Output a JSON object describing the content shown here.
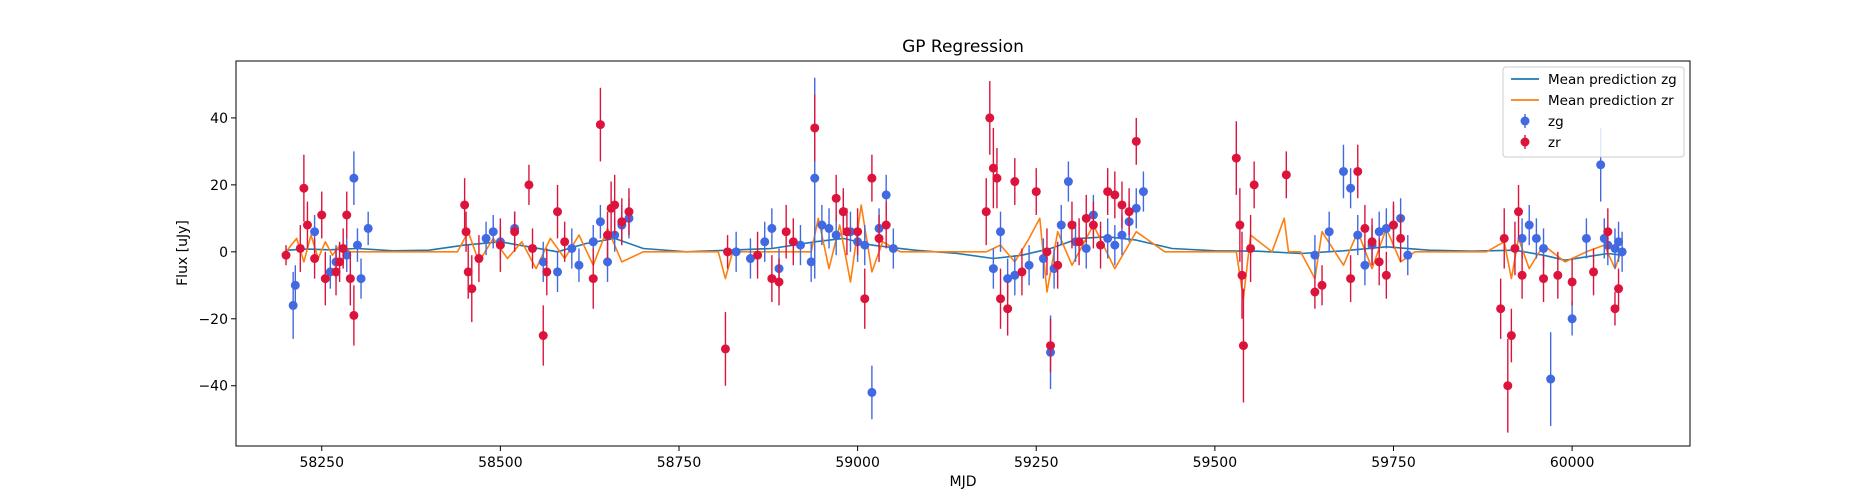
{
  "chart_data": {
    "type": "scatter",
    "title": "GP Regression",
    "xlabel": "MJD",
    "ylabel": "Flux [uJy]",
    "xlim": [
      58130,
      60165
    ],
    "ylim": [
      -58,
      57
    ],
    "xticks": [
      58250,
      58500,
      58750,
      59000,
      59250,
      59500,
      59750,
      60000
    ],
    "yticks": [
      -40,
      -20,
      0,
      20,
      40
    ],
    "grid": false,
    "legend_position": "top-right",
    "colors": {
      "zg": "#4169e1",
      "zr": "#dc143c",
      "mean_zg": "#1f77b4",
      "mean_zr": "#ff7f0e"
    },
    "series": [
      {
        "name": "Mean prediction zg",
        "kind": "line",
        "x": [
          58200,
          58230,
          58260,
          58300,
          58350,
          58400,
          58450,
          58500,
          58540,
          58580,
          58620,
          58660,
          58700,
          58760,
          58820,
          58880,
          58940,
          58980,
          59020,
          59080,
          59140,
          59190,
          59230,
          59270,
          59310,
          59350,
          59390,
          59440,
          59500,
          59560,
          59620,
          59680,
          59740,
          59800,
          59860,
          59920,
          59960,
          59990,
          60020,
          60050,
          60070
        ],
        "y": [
          0.5,
          0.8,
          0.6,
          1.0,
          0.3,
          0.5,
          2.0,
          3.0,
          1.5,
          0.0,
          2.5,
          4.0,
          1.0,
          0.0,
          0.5,
          1.0,
          3.0,
          4.0,
          2.0,
          0.5,
          -0.5,
          -2.0,
          -1.0,
          1.0,
          4.0,
          4.5,
          3.5,
          1.0,
          0.3,
          0.2,
          -0.5,
          0.3,
          1.5,
          0.5,
          0.2,
          0.5,
          -1.0,
          -2.5,
          -1.5,
          -0.5,
          -1.0
        ]
      },
      {
        "name": "Mean prediction zr",
        "kind": "line",
        "x": [
          58200,
          58215,
          58225,
          58235,
          58245,
          58255,
          58265,
          58275,
          58290,
          58310,
          58350,
          58400,
          58440,
          58455,
          58470,
          58490,
          58510,
          58530,
          58550,
          58570,
          58590,
          58610,
          58630,
          58650,
          58670,
          58700,
          58780,
          58805,
          58815,
          58825,
          58860,
          58900,
          58935,
          58945,
          58960,
          58975,
          58990,
          59005,
          59020,
          59035,
          59060,
          59120,
          59180,
          59200,
          59220,
          59240,
          59255,
          59265,
          59280,
          59300,
          59330,
          59360,
          59390,
          59430,
          59500,
          59530,
          59540,
          59550,
          59580,
          59597,
          59603,
          59620,
          59640,
          59650,
          59680,
          59700,
          59720,
          59740,
          59760,
          59780,
          59820,
          59880,
          59905,
          59915,
          59925,
          59940,
          59960,
          59990,
          60020,
          60045,
          60060,
          60070
        ],
        "y": [
          0.0,
          4.0,
          -3.0,
          5.0,
          -2.0,
          3.0,
          -1.0,
          2.0,
          0.0,
          0.0,
          0.0,
          0.0,
          0.0,
          6.0,
          -3.0,
          4.0,
          -2.0,
          3.0,
          -5.0,
          4.0,
          -2.0,
          5.0,
          -4.0,
          7.0,
          -3.0,
          0.0,
          0.0,
          0.0,
          -8.0,
          0.0,
          0.0,
          0.0,
          0.0,
          10.0,
          -5.0,
          8.0,
          -9.0,
          14.0,
          -6.0,
          3.0,
          0.0,
          0.0,
          0.0,
          2.0,
          -3.0,
          4.0,
          10.0,
          -12.0,
          6.0,
          -4.0,
          8.0,
          -5.0,
          6.0,
          0.0,
          0.0,
          0.0,
          -14.0,
          5.0,
          0.0,
          10.0,
          0.0,
          0.0,
          -8.0,
          6.0,
          -4.0,
          6.0,
          -5.0,
          7.0,
          -3.0,
          0.0,
          0.0,
          0.0,
          3.0,
          -8.0,
          4.0,
          -5.0,
          2.0,
          -3.0,
          0.0,
          2.0,
          -5.0,
          1.0
        ]
      },
      {
        "name": "zg",
        "kind": "errorbar",
        "x": [
          58210,
          58213,
          58240,
          58262,
          58270,
          58285,
          58295,
          58300,
          58305,
          58315,
          58480,
          58490,
          58500,
          58520,
          58560,
          58580,
          58600,
          58610,
          58630,
          58640,
          58650,
          58660,
          58670,
          58680,
          58830,
          58850,
          58870,
          58880,
          58890,
          58920,
          58935,
          58940,
          58950,
          58960,
          58970,
          58980,
          58990,
          59000,
          59010,
          59020,
          59030,
          59040,
          59050,
          59190,
          59200,
          59210,
          59220,
          59240,
          59260,
          59270,
          59275,
          59285,
          59295,
          59305,
          59320,
          59330,
          59350,
          59360,
          59370,
          59380,
          59390,
          59400,
          59640,
          59660,
          59680,
          59690,
          59700,
          59710,
          59720,
          59730,
          59740,
          59750,
          59760,
          59770,
          59930,
          59940,
          59950,
          59960,
          59970,
          60000,
          60020,
          60040,
          60045,
          60050,
          60060,
          60065,
          60070
        ],
        "y": [
          -16,
          -10,
          6,
          -6,
          -3,
          -1,
          22,
          2,
          -8,
          7,
          4,
          6,
          3,
          7,
          -3,
          -6,
          1,
          -4,
          3,
          9,
          -3,
          5,
          8,
          10,
          0,
          -2,
          3,
          7,
          -5,
          2,
          -3,
          22,
          8,
          7,
          5,
          12,
          6,
          3,
          2,
          -42,
          7,
          17,
          1,
          -5,
          6,
          -8,
          -7,
          -4,
          -2,
          -30,
          -5,
          8,
          21,
          3,
          1,
          11,
          4,
          2,
          5,
          9,
          13,
          18,
          -1,
          6,
          24,
          19,
          5,
          -4,
          2,
          6,
          7,
          8,
          10,
          -1,
          4,
          8,
          4,
          1,
          -38,
          -20,
          4,
          26,
          4,
          2,
          1,
          3,
          0
        ],
        "err": [
          10,
          6,
          5,
          5,
          5,
          5,
          8,
          5,
          6,
          5,
          5,
          5,
          5,
          5,
          6,
          6,
          6,
          5,
          5,
          5,
          6,
          5,
          6,
          6,
          6,
          6,
          6,
          6,
          6,
          6,
          6,
          30,
          6,
          6,
          6,
          6,
          6,
          6,
          6,
          8,
          6,
          6,
          6,
          6,
          6,
          6,
          6,
          6,
          6,
          11,
          6,
          6,
          6,
          6,
          6,
          6,
          6,
          6,
          6,
          6,
          6,
          6,
          6,
          6,
          8,
          6,
          6,
          6,
          6,
          6,
          6,
          6,
          6,
          6,
          6,
          6,
          6,
          6,
          14,
          5,
          6,
          11,
          6,
          6,
          6,
          6,
          6
        ]
      },
      {
        "name": "zr",
        "kind": "errorbar",
        "x": [
          58200,
          58220,
          58225,
          58230,
          58240,
          58250,
          58255,
          58270,
          58275,
          58280,
          58285,
          58290,
          58295,
          58450,
          58452,
          58455,
          58460,
          58470,
          58500,
          58520,
          58540,
          58545,
          58560,
          58565,
          58580,
          58590,
          58630,
          58640,
          58650,
          58655,
          58660,
          58670,
          58680,
          58815,
          58818,
          58860,
          58880,
          58890,
          58900,
          58910,
          58940,
          58970,
          58980,
          58985,
          59000,
          59010,
          59020,
          59030,
          59040,
          59180,
          59185,
          59190,
          59195,
          59200,
          59210,
          59220,
          59230,
          59250,
          59265,
          59270,
          59280,
          59300,
          59310,
          59320,
          59330,
          59340,
          59350,
          59360,
          59370,
          59380,
          59390,
          59530,
          59535,
          59538,
          59540,
          59550,
          59555,
          59600,
          59640,
          59650,
          59690,
          59700,
          59710,
          59720,
          59730,
          59740,
          59750,
          59760,
          59900,
          59905,
          59910,
          59915,
          59920,
          59925,
          59930,
          59960,
          59980,
          60000,
          60030,
          60050,
          60060,
          60065
        ],
        "y": [
          -1,
          1,
          19,
          8,
          -2,
          11,
          -8,
          -6,
          -3,
          1,
          11,
          -8,
          -19,
          14,
          6,
          -6,
          -11,
          -2,
          2,
          6,
          20,
          1,
          -25,
          -6,
          12,
          3,
          -8,
          38,
          5,
          13,
          14,
          9,
          12,
          -29,
          0,
          -1,
          -8,
          -9,
          6,
          3,
          37,
          16,
          12,
          6,
          6,
          -14,
          22,
          4,
          8,
          12,
          40,
          25,
          22,
          -14,
          -17,
          21,
          -6,
          18,
          0,
          -28,
          -4,
          8,
          3,
          10,
          8,
          2,
          18,
          17,
          14,
          12,
          33,
          28,
          8,
          -7,
          -28,
          1,
          20,
          23,
          -12,
          -10,
          -8,
          24,
          7,
          3,
          -3,
          -7,
          8,
          4,
          -17,
          4,
          -40,
          -25,
          1,
          12,
          -7,
          -8,
          -7,
          -9,
          -6,
          6,
          -17,
          -11
        ],
        "err": [
          3,
          7,
          10,
          7,
          6,
          7,
          8,
          7,
          6,
          6,
          7,
          8,
          9,
          8,
          6,
          8,
          10,
          7,
          8,
          6,
          6,
          6,
          9,
          7,
          8,
          6,
          9,
          11,
          7,
          8,
          9,
          7,
          7,
          11,
          5,
          7,
          7,
          7,
          8,
          7,
          10,
          7,
          7,
          7,
          7,
          9,
          7,
          7,
          7,
          10,
          11,
          12,
          9,
          9,
          8,
          7,
          7,
          7,
          7,
          8,
          7,
          7,
          7,
          7,
          7,
          7,
          7,
          7,
          7,
          7,
          7,
          11,
          11,
          13,
          17,
          10,
          7,
          7,
          5,
          6,
          7,
          8,
          7,
          7,
          7,
          7,
          7,
          7,
          9,
          9,
          14,
          8,
          8,
          8,
          7,
          7,
          7,
          7,
          7,
          7,
          5,
          6
        ]
      }
    ],
    "legend": [
      {
        "label": "Mean prediction zg",
        "kind": "line",
        "color": "#1f77b4"
      },
      {
        "label": "Mean prediction zr",
        "kind": "line",
        "color": "#ff7f0e"
      },
      {
        "label": "zg",
        "kind": "errorbar",
        "color": "#4169e1"
      },
      {
        "label": "zr",
        "kind": "errorbar",
        "color": "#dc143c"
      }
    ]
  }
}
